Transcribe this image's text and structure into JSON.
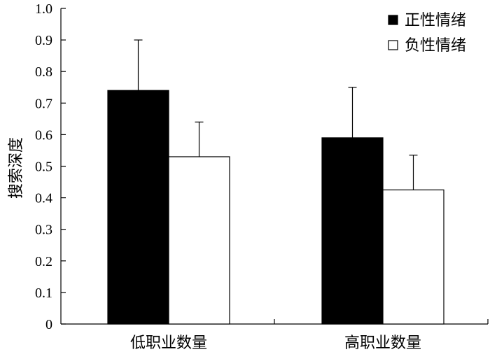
{
  "chart_data": {
    "type": "bar",
    "title": "",
    "xlabel": "",
    "ylabel": "搜索深度",
    "ylim": [
      0,
      1.0
    ],
    "yticks": [
      "0",
      "0.1",
      "0.2",
      "0.3",
      "0.4",
      "0.5",
      "0.6",
      "0.7",
      "0.8",
      "0.9",
      "1.0"
    ],
    "categories": [
      "低职业数量",
      "高职业数量"
    ],
    "series": [
      {
        "name": "正性情绪",
        "values": [
          0.74,
          0.59
        ],
        "error": [
          0.16,
          0.16
        ],
        "color": "#000000"
      },
      {
        "name": "负性情绪",
        "values": [
          0.53,
          0.425
        ],
        "error": [
          0.11,
          0.11
        ],
        "color": "#ffffff"
      }
    ],
    "legend_position": "top-right",
    "grid": false
  }
}
